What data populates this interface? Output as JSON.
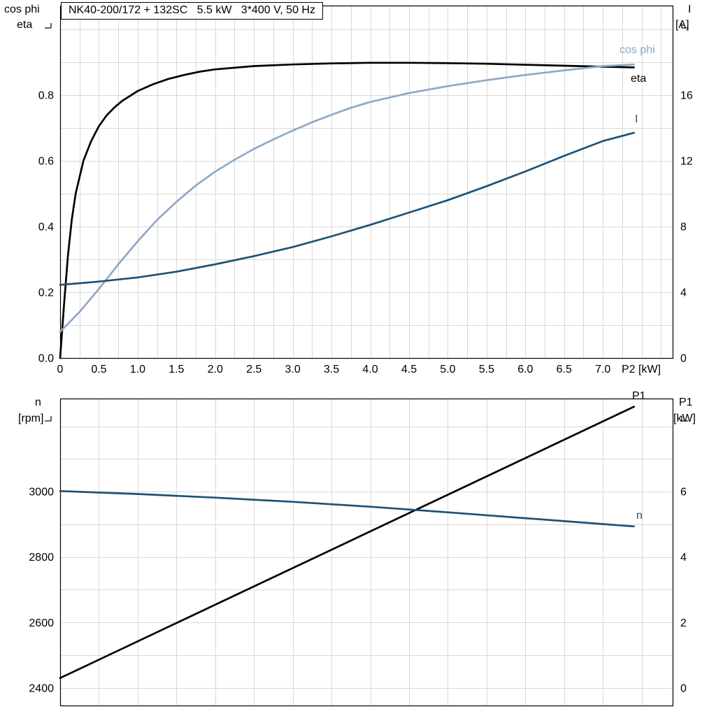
{
  "header": {
    "title": "NK40-200/172 + 132SC   5.5 kW   3*400 V, 50 Hz"
  },
  "colors": {
    "grid": "#d8d8d8",
    "frame": "#000000",
    "eta": "#000000",
    "cos_phi": "#8ea9c6",
    "current": "#1d5278",
    "speed": "#1d5278",
    "p1": "#000000"
  },
  "chart_data": [
    {
      "id": "performance",
      "type": "line",
      "x_axis": {
        "label": "P2 [kW]",
        "range": [
          0,
          7.9
        ],
        "grid_step": 0.25,
        "tick_values": [
          0,
          0.5,
          1,
          1.5,
          2,
          2.5,
          3,
          3.5,
          4,
          4.5,
          5,
          5.5,
          6,
          6.5,
          7
        ],
        "tick_labels": [
          "0",
          "0.5",
          "1.0",
          "1.5",
          "2.0",
          "2.5",
          "3.0",
          "3.5",
          "4.0",
          "4.5",
          "5.0",
          "5.5",
          "6.0",
          "6.5",
          "7.0"
        ]
      },
      "y_left": {
        "labels": [
          "cos phi",
          "eta"
        ],
        "range": [
          0,
          1.072
        ],
        "grid_step": 0.1,
        "tick_values": [
          0,
          0.2,
          0.4,
          0.6,
          0.8
        ],
        "tick_labels": [
          "0.0",
          "0.2",
          "0.4",
          "0.6",
          "0.8"
        ]
      },
      "y_right": {
        "labels": [
          "I",
          "[A]"
        ],
        "range": [
          0,
          21.44
        ],
        "grid_step": 2,
        "tick_values": [
          0,
          4,
          8,
          12,
          16
        ],
        "tick_labels": [
          "0",
          "4",
          "8",
          "12",
          "16"
        ]
      },
      "series": [
        {
          "name": "eta",
          "label": "eta",
          "axis": "left",
          "color": "#000000",
          "x": [
            0,
            0.05,
            0.1,
            0.15,
            0.2,
            0.3,
            0.4,
            0.5,
            0.6,
            0.7,
            0.8,
            1.0,
            1.2,
            1.4,
            1.6,
            1.8,
            2.0,
            2.5,
            3.0,
            3.5,
            4.0,
            4.5,
            5.0,
            5.5,
            6.0,
            6.5,
            7.0,
            7.4
          ],
          "y": [
            0,
            0.16,
            0.31,
            0.42,
            0.5,
            0.6,
            0.66,
            0.705,
            0.738,
            0.762,
            0.782,
            0.812,
            0.833,
            0.849,
            0.861,
            0.871,
            0.878,
            0.888,
            0.893,
            0.896,
            0.898,
            0.898,
            0.897,
            0.895,
            0.892,
            0.889,
            0.886,
            0.884
          ]
        },
        {
          "name": "cos-phi",
          "label": "cos phi",
          "axis": "left",
          "color": "#8ea9c6",
          "x": [
            0,
            0.25,
            0.5,
            0.75,
            1.0,
            1.25,
            1.5,
            1.75,
            2.0,
            2.25,
            2.5,
            2.75,
            3.0,
            3.25,
            3.5,
            3.75,
            4.0,
            4.5,
            5.0,
            5.5,
            6.0,
            6.5,
            7.0,
            7.4
          ],
          "y": [
            0.08,
            0.14,
            0.21,
            0.285,
            0.355,
            0.42,
            0.475,
            0.525,
            0.567,
            0.603,
            0.636,
            0.665,
            0.692,
            0.717,
            0.74,
            0.761,
            0.779,
            0.806,
            0.827,
            0.845,
            0.861,
            0.875,
            0.888,
            0.893
          ]
        },
        {
          "name": "current",
          "label": "I",
          "axis": "right",
          "color": "#1d5278",
          "x": [
            0,
            0.5,
            1.0,
            1.5,
            2.0,
            2.5,
            3.0,
            3.5,
            4.0,
            4.5,
            5.0,
            5.5,
            6.0,
            6.5,
            7.0,
            7.4
          ],
          "y": [
            4.45,
            4.65,
            4.9,
            5.25,
            5.7,
            6.2,
            6.75,
            7.4,
            8.1,
            8.85,
            9.6,
            10.45,
            11.35,
            12.3,
            13.2,
            13.7
          ]
        }
      ]
    },
    {
      "id": "speed-power",
      "type": "line",
      "x_axis": {
        "label": "",
        "range": [
          0,
          7.9
        ],
        "grid_step": 0.5,
        "tick_values": [],
        "tick_labels": []
      },
      "y_left": {
        "labels": [
          "n",
          "[rpm]"
        ],
        "range": [
          2346,
          3285
        ],
        "grid_step": 100,
        "tick_values": [
          2400,
          2600,
          2800,
          3000
        ],
        "tick_labels": [
          "2400",
          "2600",
          "2800",
          "3000"
        ]
      },
      "y_right": {
        "labels": [
          "P1",
          "[kW]"
        ],
        "range": [
          -0.54,
          8.85
        ],
        "grid_step": 1,
        "tick_values": [
          0,
          2,
          4,
          6
        ],
        "tick_labels": [
          "0",
          "2",
          "4",
          "6"
        ]
      },
      "series": [
        {
          "name": "p1",
          "label": "P1",
          "axis": "right",
          "color": "#000000",
          "x": [
            0,
            7.4
          ],
          "y": [
            0.3,
            8.6
          ]
        },
        {
          "name": "speed",
          "label": "n",
          "axis": "left",
          "color": "#1d5278",
          "x": [
            0,
            1,
            2,
            3,
            4,
            5,
            6,
            7,
            7.4
          ],
          "y": [
            3002,
            2993,
            2982,
            2969,
            2954,
            2937,
            2919,
            2901,
            2894
          ]
        }
      ]
    }
  ]
}
